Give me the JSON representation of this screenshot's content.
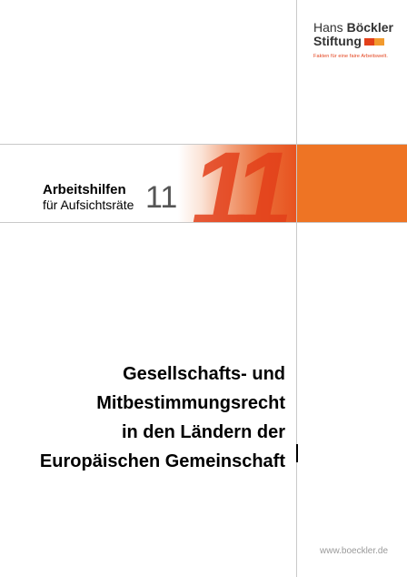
{
  "logo": {
    "line1_regular": "Hans ",
    "line1_bold": "Böckler",
    "line2": "Stiftung",
    "tagline": "Fakten für eine faire Arbeitswelt.",
    "swatch_colors": [
      "#e3401a",
      "#f29a2e"
    ]
  },
  "series": {
    "title": "Arbeitshilfen",
    "subtitle": "für Aufsichtsräte",
    "number": "11",
    "big_number": "11"
  },
  "title_lines": [
    "Gesellschafts- und",
    "Mitbestimmungsrecht",
    "in den Ländern der",
    "Europäischen Gemeinschaft"
  ],
  "url": "www.boeckler.de",
  "colors": {
    "orange": "#ee7424",
    "red": "#e3401a",
    "rule": "#c9c9c9"
  }
}
